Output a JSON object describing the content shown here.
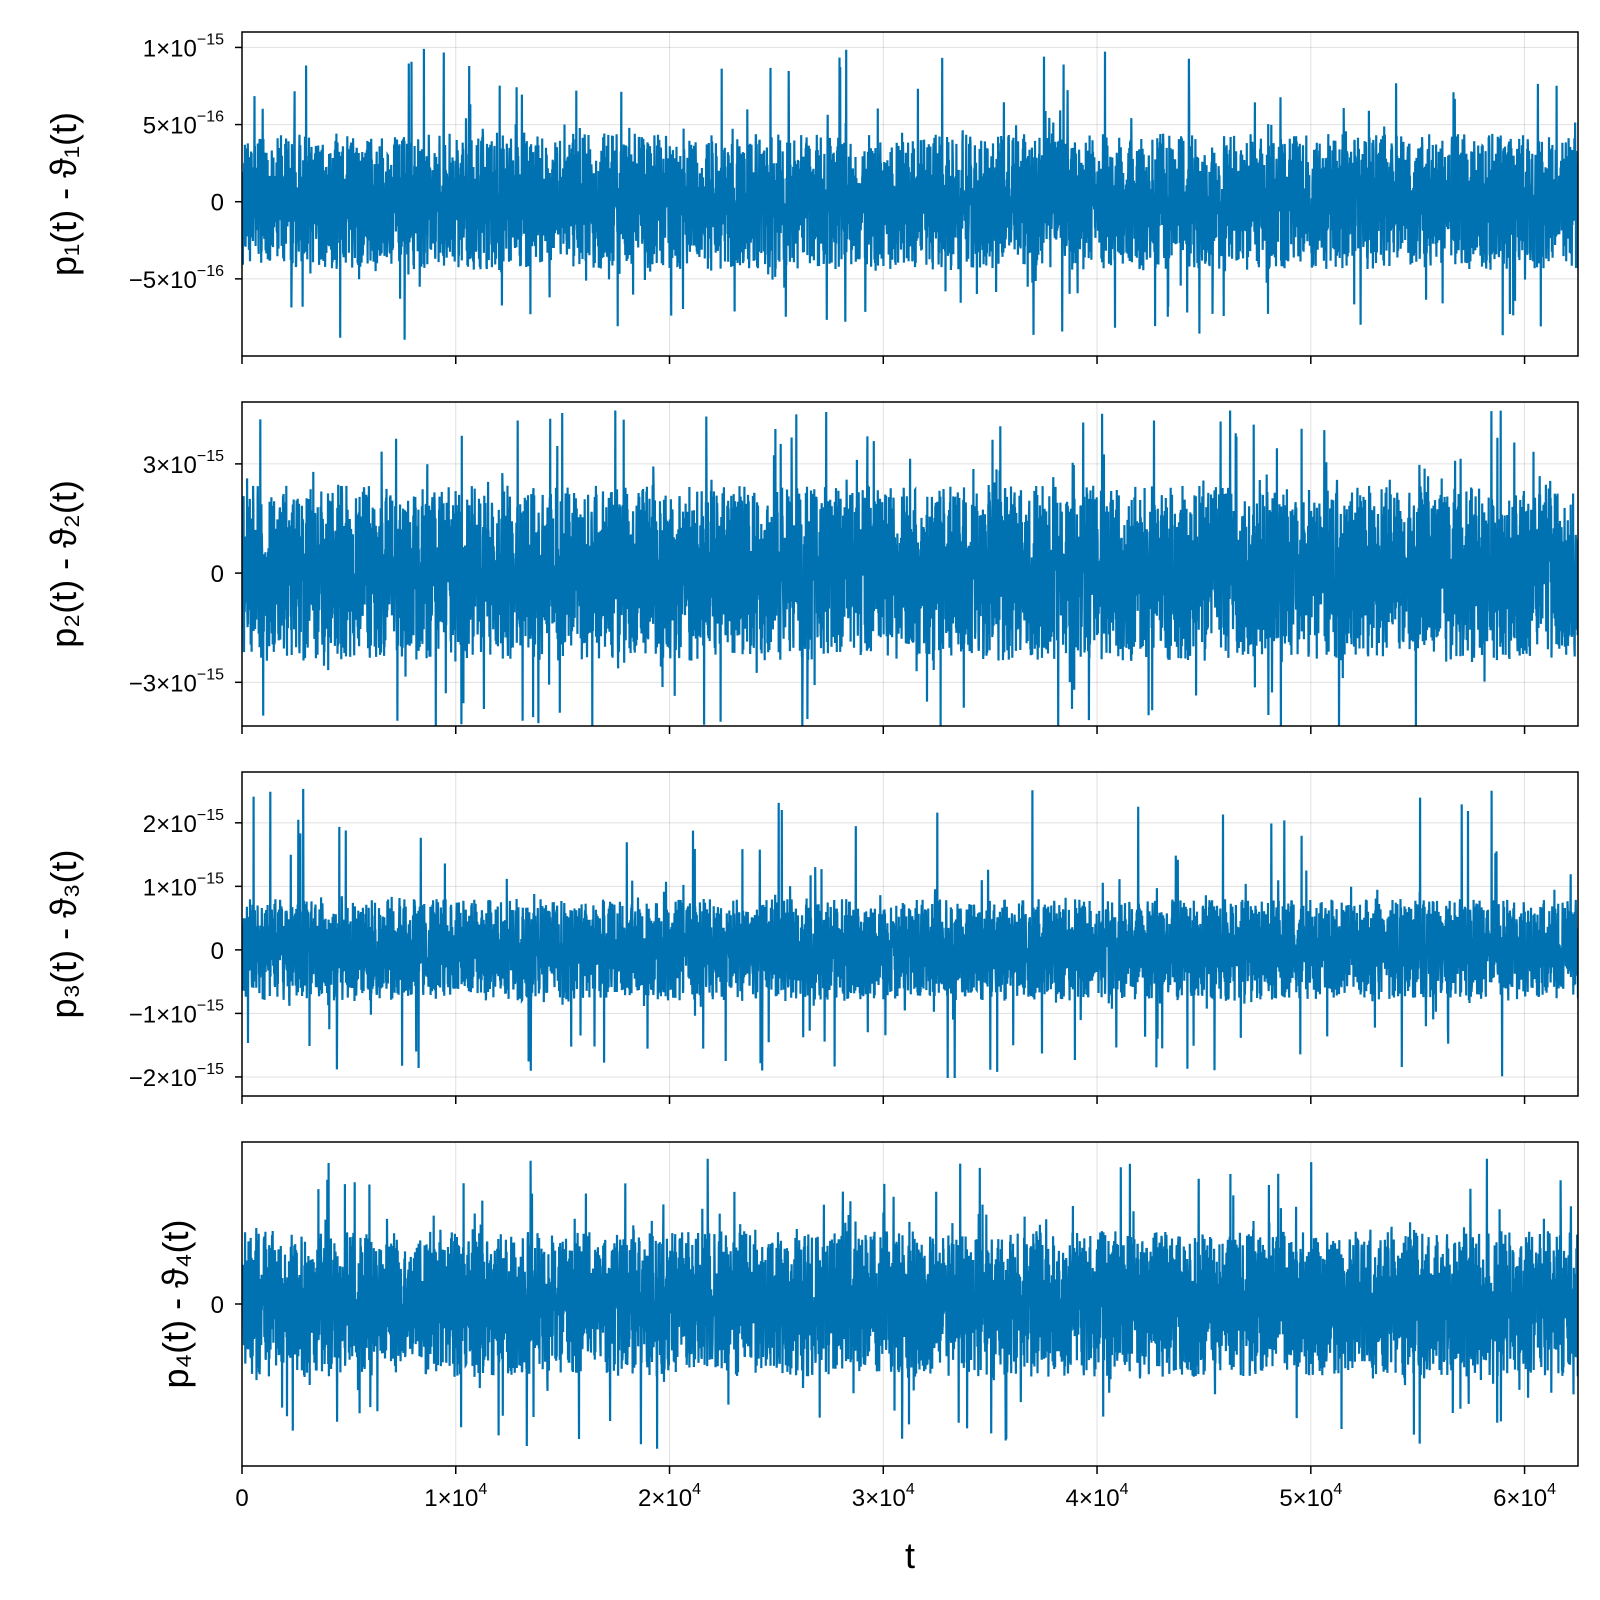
{
  "chart_data": [
    {
      "type": "line",
      "ylabel": "p₁(t) - ϑ₁(t)",
      "xlim": [
        0,
        62500
      ],
      "ylim": [
        -1e-15,
        1.1e-15
      ],
      "amplitude": 4.4e-16,
      "spike_range": [
        -9e-16,
        1e-15
      ],
      "yticks": [
        {
          "value": 1e-15,
          "mant": "1×10",
          "exp": "−15"
        },
        {
          "value": 5e-16,
          "mant": "5×10",
          "exp": "−16"
        },
        {
          "value": 0,
          "mant": "0",
          "exp": ""
        },
        {
          "value": -5e-16,
          "mant": "−5×10",
          "exp": "−16"
        }
      ],
      "series": [
        {
          "color": "#0072b2"
        }
      ]
    },
    {
      "type": "line",
      "ylabel": "p₂(t) - ϑ₂(t)",
      "xlim": [
        0,
        62500
      ],
      "ylim": [
        -4.2e-15,
        4.7e-15
      ],
      "amplitude": 2.4e-15,
      "spike_range": [
        -4.6e-15,
        4.5e-15
      ],
      "yticks": [
        {
          "value": 3e-15,
          "mant": "3×10",
          "exp": "−15"
        },
        {
          "value": 0,
          "mant": "0",
          "exp": ""
        },
        {
          "value": -3e-15,
          "mant": "−3×10",
          "exp": "−15"
        }
      ],
      "series": [
        {
          "color": "#0072b2"
        }
      ]
    },
    {
      "type": "line",
      "ylabel": "p₃(t) - ϑ₃(t)",
      "xlim": [
        0,
        62500
      ],
      "ylim": [
        -2.3e-15,
        2.8e-15
      ],
      "amplitude": 8e-16,
      "spike_range": [
        -2.05e-15,
        2.55e-15
      ],
      "yticks": [
        {
          "value": 2e-15,
          "mant": "2×10",
          "exp": "−15"
        },
        {
          "value": 1e-15,
          "mant": "1×10",
          "exp": "−15"
        },
        {
          "value": 0,
          "mant": "0",
          "exp": ""
        },
        {
          "value": -1e-15,
          "mant": "−1×10",
          "exp": "−15"
        },
        {
          "value": -2e-15,
          "mant": "−2×10",
          "exp": "−15"
        }
      ],
      "series": [
        {
          "color": "#0072b2"
        }
      ]
    },
    {
      "type": "line",
      "ylabel": "p₄(t) - ϑ₄(t)",
      "xlabel": "t",
      "xlim": [
        0,
        62500
      ],
      "ylim": [
        -1.0,
        1.0
      ],
      "amplitude": 0.45,
      "spike_range": [
        -0.9,
        0.9
      ],
      "yticks": [
        {
          "value": 0,
          "mant": "0",
          "exp": ""
        }
      ],
      "xticks": [
        {
          "value": 0,
          "mant": "0",
          "exp": ""
        },
        {
          "value": 10000,
          "mant": "1×10",
          "exp": "4"
        },
        {
          "value": 20000,
          "mant": "2×10",
          "exp": "4"
        },
        {
          "value": 30000,
          "mant": "3×10",
          "exp": "4"
        },
        {
          "value": 40000,
          "mant": "4×10",
          "exp": "4"
        },
        {
          "value": 50000,
          "mant": "5×10",
          "exp": "4"
        },
        {
          "value": 60000,
          "mant": "6×10",
          "exp": "4"
        }
      ],
      "series": [
        {
          "color": "#0072b2"
        }
      ]
    }
  ]
}
